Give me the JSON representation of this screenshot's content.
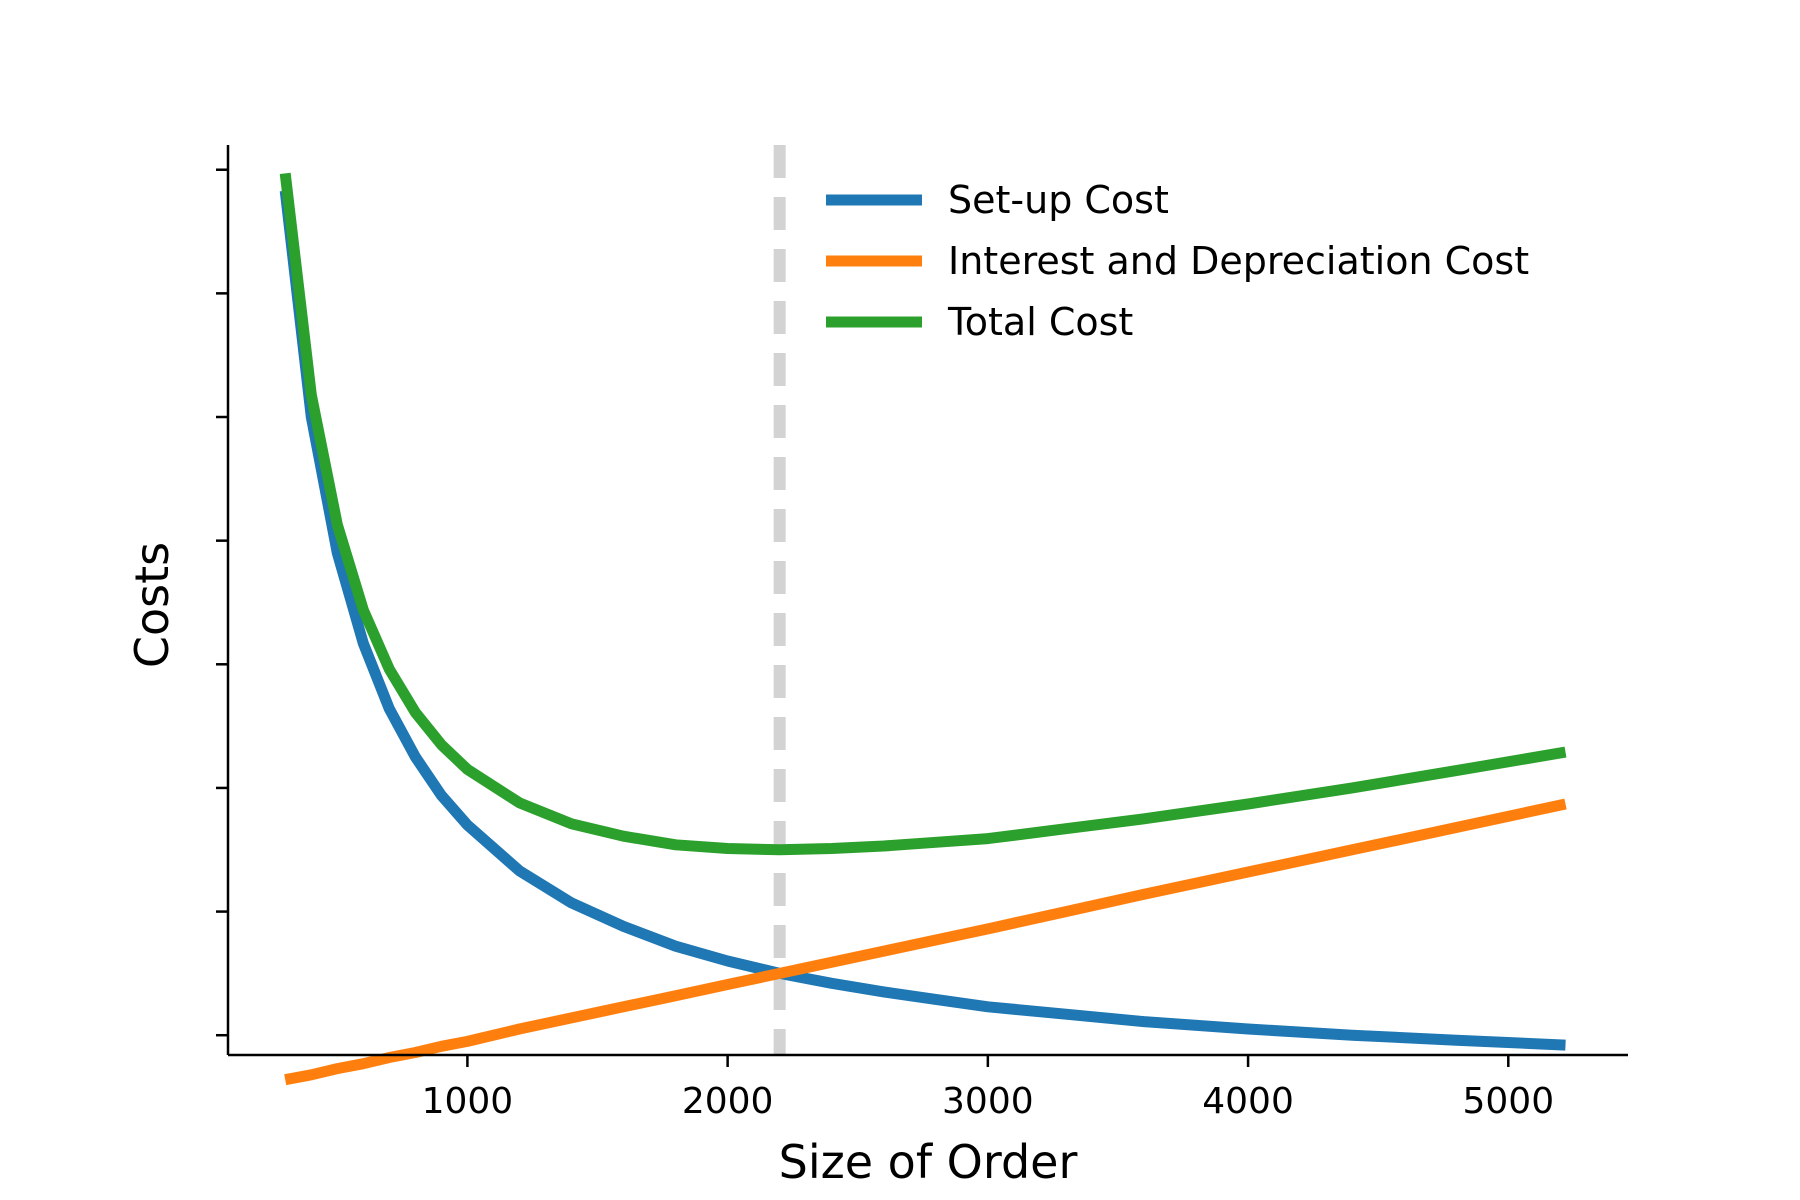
{
  "chart_data": {
    "type": "line",
    "title": "",
    "xlabel": "Size of Order",
    "ylabel": "Costs",
    "xlim": [
      80,
      5460
    ],
    "ylim": [
      0.34,
      7.7
    ],
    "x_ticks": [
      1000,
      2000,
      3000,
      4000,
      5000
    ],
    "y_ticks": [
      0.5,
      1.5,
      2.5,
      3.5,
      4.5,
      5.5,
      6.5,
      7.5
    ],
    "y_tick_labels_shown": false,
    "grid": false,
    "legend_position": "top-center",
    "optimum_order_size": 2200,
    "x": [
      300,
      400,
      500,
      600,
      700,
      800,
      900,
      1000,
      1200,
      1400,
      1600,
      1800,
      2000,
      2200,
      2400,
      2600,
      2800,
      3000,
      3300,
      3600,
      4000,
      4400,
      4800,
      5220
    ],
    "series": [
      {
        "name": "Set-up Cost",
        "color": "#1f77b4",
        "values": [
          7.33,
          5.5,
          4.4,
          3.67,
          3.14,
          2.75,
          2.44,
          2.2,
          1.83,
          1.57,
          1.38,
          1.22,
          1.1,
          1.0,
          0.92,
          0.85,
          0.79,
          0.73,
          0.67,
          0.61,
          0.55,
          0.5,
          0.46,
          0.42
        ]
      },
      {
        "name": "Interest and Depreciation Cost",
        "color": "#ff7f0e",
        "values": [
          0.14,
          0.18,
          0.23,
          0.27,
          0.32,
          0.36,
          0.41,
          0.45,
          0.55,
          0.64,
          0.73,
          0.82,
          0.91,
          1.0,
          1.09,
          1.18,
          1.27,
          1.36,
          1.5,
          1.64,
          1.82,
          2.0,
          2.18,
          2.37
        ]
      },
      {
        "name": "Total Cost",
        "color": "#2ca02c",
        "values": [
          7.47,
          5.68,
          4.63,
          3.94,
          3.46,
          3.11,
          2.85,
          2.65,
          2.38,
          2.21,
          2.11,
          2.04,
          2.01,
          2.0,
          2.01,
          2.03,
          2.06,
          2.09,
          2.17,
          2.25,
          2.37,
          2.5,
          2.64,
          2.79
        ]
      }
    ]
  }
}
